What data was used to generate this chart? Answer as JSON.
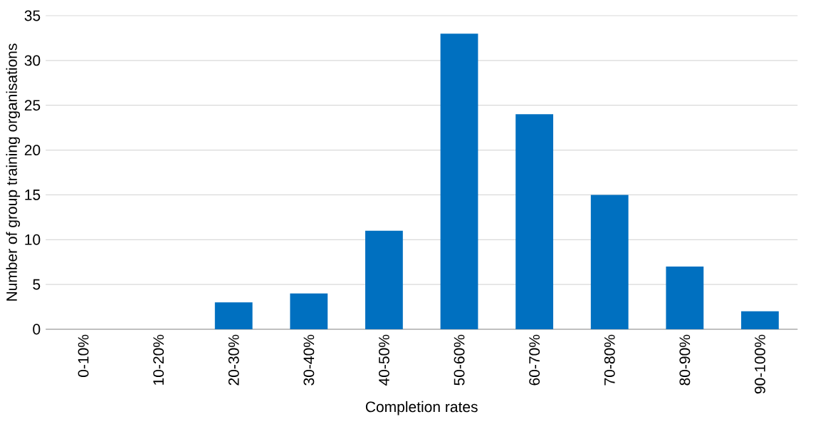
{
  "chart_data": {
    "type": "bar",
    "categories": [
      "0-10%",
      "10-20%",
      "20-30%",
      "30-40%",
      "40-50%",
      "50-60%",
      "60-70%",
      "70-80%",
      "80-90%",
      "90-100%"
    ],
    "values": [
      0,
      0,
      3,
      4,
      11,
      33,
      24,
      15,
      7,
      2
    ],
    "color": "#0070c0",
    "ylim": [
      0,
      35
    ],
    "yticks": [
      0,
      5,
      10,
      15,
      20,
      25,
      30,
      35
    ],
    "grid": "y",
    "xlabel": "Completion rates",
    "ylabel": "Number of group training organisations"
  }
}
